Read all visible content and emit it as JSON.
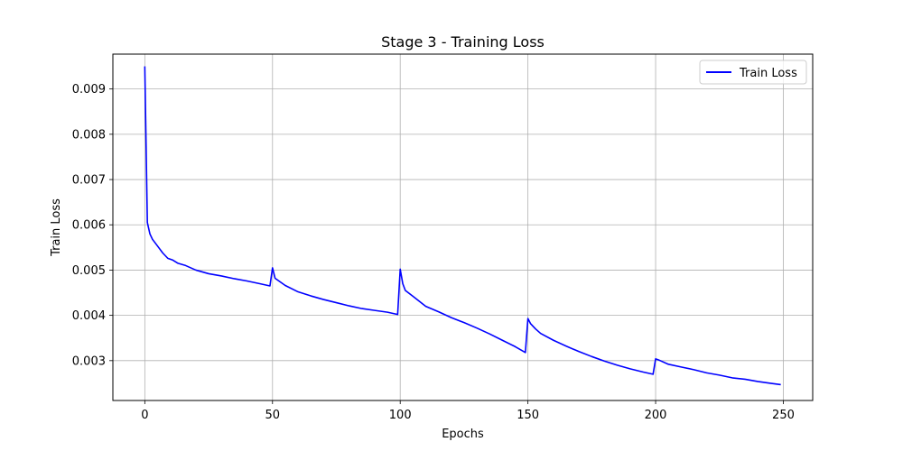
{
  "chart_data": {
    "type": "line",
    "title": "Stage 3 - Training Loss",
    "xlabel": "Epochs",
    "ylabel": "Train Loss",
    "xlim": [
      -12.5,
      261.5
    ],
    "ylim": [
      0.00212,
      0.00977
    ],
    "x_ticks": [
      0,
      50,
      100,
      150,
      200,
      250
    ],
    "y_ticks": [
      0.003,
      0.004,
      0.005,
      0.006,
      0.007,
      0.008,
      0.009
    ],
    "y_tick_labels": [
      "0.003",
      "0.004",
      "0.005",
      "0.006",
      "0.007",
      "0.008",
      "0.009"
    ],
    "grid": true,
    "legend": {
      "position": "top-right",
      "entries": [
        "Train Loss"
      ]
    },
    "series": [
      {
        "name": "Train Loss",
        "color": "#0000ff",
        "anchors": [
          [
            0,
            0.0095
          ],
          [
            1,
            0.00605
          ],
          [
            2,
            0.0058
          ],
          [
            3,
            0.00568
          ],
          [
            5,
            0.00553
          ],
          [
            7,
            0.00538
          ],
          [
            9,
            0.00526
          ],
          [
            11,
            0.00522
          ],
          [
            13,
            0.00515
          ],
          [
            16,
            0.0051
          ],
          [
            20,
            0.005
          ],
          [
            25,
            0.00492
          ],
          [
            30,
            0.00487
          ],
          [
            35,
            0.00481
          ],
          [
            40,
            0.00476
          ],
          [
            45,
            0.0047
          ],
          [
            49,
            0.00465
          ],
          [
            50,
            0.00505
          ],
          [
            51,
            0.00482
          ],
          [
            53,
            0.00474
          ],
          [
            55,
            0.00466
          ],
          [
            60,
            0.00452
          ],
          [
            65,
            0.00443
          ],
          [
            70,
            0.00435
          ],
          [
            75,
            0.00428
          ],
          [
            80,
            0.00421
          ],
          [
            85,
            0.00415
          ],
          [
            90,
            0.00411
          ],
          [
            95,
            0.00407
          ],
          [
            99,
            0.00402
          ],
          [
            100,
            0.00502
          ],
          [
            101,
            0.0047
          ],
          [
            102,
            0.00455
          ],
          [
            105,
            0.00442
          ],
          [
            110,
            0.0042
          ],
          [
            115,
            0.00408
          ],
          [
            120,
            0.00395
          ],
          [
            125,
            0.00384
          ],
          [
            130,
            0.00372
          ],
          [
            135,
            0.00359
          ],
          [
            140,
            0.00345
          ],
          [
            145,
            0.00331
          ],
          [
            149,
            0.00318
          ],
          [
            150,
            0.00393
          ],
          [
            151,
            0.00382
          ],
          [
            153,
            0.0037
          ],
          [
            155,
            0.0036
          ],
          [
            160,
            0.00345
          ],
          [
            165,
            0.00332
          ],
          [
            170,
            0.0032
          ],
          [
            175,
            0.00309
          ],
          [
            180,
            0.00299
          ],
          [
            185,
            0.0029
          ],
          [
            190,
            0.00282
          ],
          [
            195,
            0.00275
          ],
          [
            199,
            0.0027
          ],
          [
            200,
            0.00304
          ],
          [
            201,
            0.00302
          ],
          [
            205,
            0.00292
          ],
          [
            210,
            0.00286
          ],
          [
            215,
            0.0028
          ],
          [
            220,
            0.00273
          ],
          [
            225,
            0.00268
          ],
          [
            230,
            0.00262
          ],
          [
            235,
            0.00259
          ],
          [
            240,
            0.00254
          ],
          [
            245,
            0.0025
          ],
          [
            249,
            0.00247
          ]
        ]
      }
    ]
  }
}
